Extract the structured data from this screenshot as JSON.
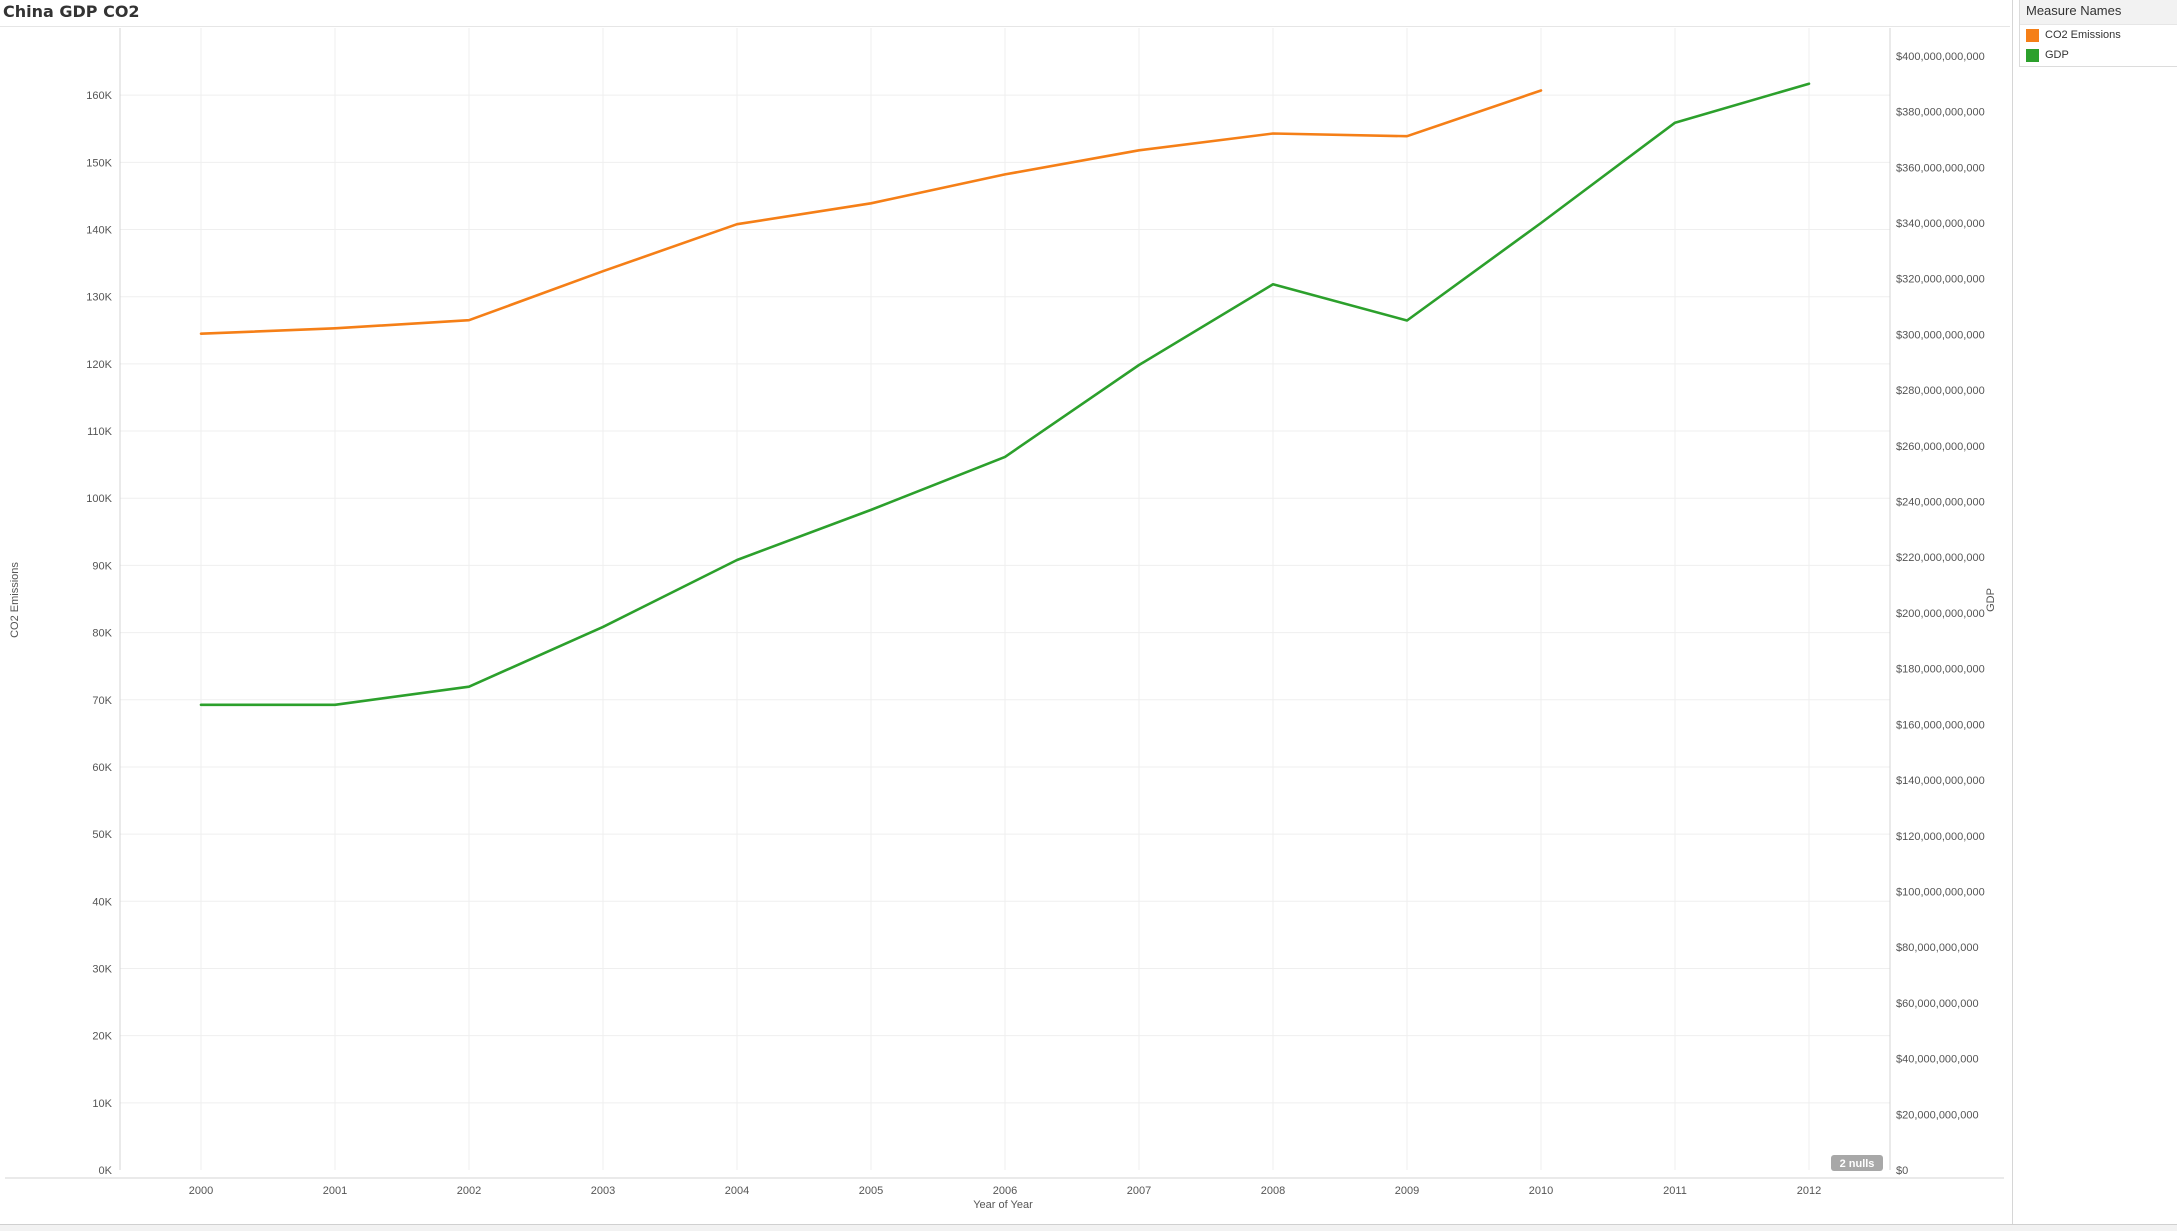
{
  "worksheet": {
    "title": "China GDP CO2"
  },
  "legend": {
    "title": "Measure Names",
    "items": [
      {
        "label": "CO2 Emissions",
        "color": "#f57f17"
      },
      {
        "label": "GDP",
        "color": "#2ca02c"
      }
    ]
  },
  "null_indicator": "2 nulls",
  "chart_data": {
    "type": "line",
    "title": "China GDP CO2",
    "xlabel": "Year of Year",
    "ylabel": "CO2 Emissions",
    "y2label": "GDP",
    "x": [
      2000,
      2001,
      2002,
      2003,
      2004,
      2005,
      2006,
      2007,
      2008,
      2009,
      2010,
      2011,
      2012
    ],
    "x_tick_labels": [
      "2000",
      "2001",
      "2002",
      "2003",
      "2004",
      "2005",
      "2006",
      "2007",
      "2008",
      "2009",
      "2010",
      "2011",
      "2012"
    ],
    "ylim": [
      0,
      170000
    ],
    "y_tick_labels": [
      "0K",
      "10K",
      "20K",
      "30K",
      "40K",
      "50K",
      "60K",
      "70K",
      "80K",
      "90K",
      "100K",
      "110K",
      "120K",
      "130K",
      "140K",
      "150K",
      "160K"
    ],
    "y2lim": [
      0,
      410000000000
    ],
    "y2_tick_labels": [
      "$0",
      "$20,000,000,000",
      "$40,000,000,000",
      "$60,000,000,000",
      "$80,000,000,000",
      "$100,000,000,000",
      "$120,000,000,000",
      "$140,000,000,000",
      "$160,000,000,000",
      "$180,000,000,000",
      "$200,000,000,000",
      "$220,000,000,000",
      "$240,000,000,000",
      "$260,000,000,000",
      "$280,000,000,000",
      "$300,000,000,000",
      "$320,000,000,000",
      "$340,000,000,000",
      "$360,000,000,000",
      "$380,000,000,000",
      "$400,000,000,000"
    ],
    "grid": true,
    "legend_position": "top-right",
    "series": [
      {
        "name": "CO2 Emissions",
        "axis": "left",
        "color": "#f57f17",
        "values": [
          124500,
          125300,
          126500,
          133800,
          140800,
          143900,
          148200,
          151800,
          154300,
          153900,
          160700,
          null,
          null
        ]
      },
      {
        "name": "GDP",
        "axis": "right",
        "color": "#2ca02c",
        "values": [
          167000000000,
          167000000000,
          173500000000,
          195000000000,
          219000000000,
          237000000000,
          256000000000,
          289000000000,
          318000000000,
          305000000000,
          340000000000,
          376000000000,
          390000000000
        ]
      }
    ]
  }
}
